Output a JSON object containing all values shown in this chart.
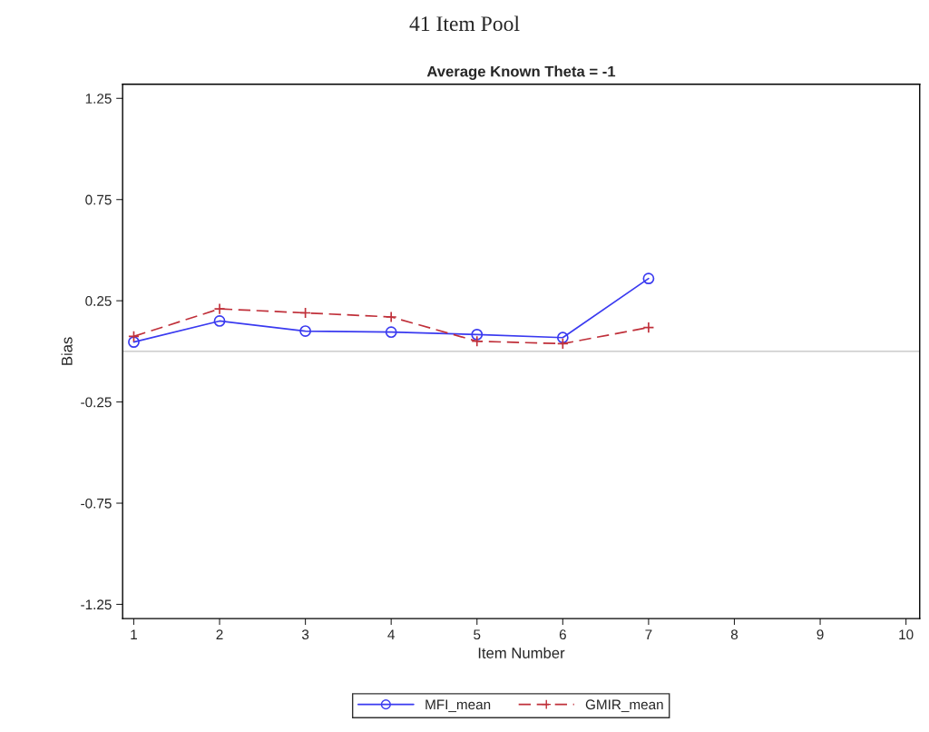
{
  "chart_data": {
    "type": "line",
    "title": "41 Item Pool",
    "subtitle": "Average Known Theta = -1",
    "xlabel": "Item Number",
    "ylabel": "Bias",
    "x": [
      1,
      2,
      3,
      4,
      5,
      6,
      7
    ],
    "series": [
      {
        "name": "MFI_mean",
        "color": "#3a3af0",
        "values": [
          0.046,
          0.15,
          0.1,
          0.095,
          0.083,
          0.068,
          0.36
        ],
        "marker": "circle",
        "line_style": "solid"
      },
      {
        "name": "GMIR_mean",
        "color": "#c0303a",
        "values": [
          0.074,
          0.21,
          0.19,
          0.17,
          0.05,
          0.038,
          0.118
        ],
        "marker": "cross",
        "line_style": "dashed"
      }
    ],
    "xlim": [
      0.87,
      10.16
    ],
    "xticks": [
      1,
      2,
      3,
      4,
      5,
      6,
      7,
      8,
      9,
      10
    ],
    "ylim": [
      -1.32,
      1.32
    ],
    "yticks": [
      -1.25,
      -0.75,
      -0.25,
      0.25,
      0.75,
      1.25
    ],
    "ref_lines": [
      {
        "axis": "y",
        "value": 0,
        "color": "#c0c0c0"
      }
    ],
    "grid": false,
    "legend": "bottom"
  }
}
